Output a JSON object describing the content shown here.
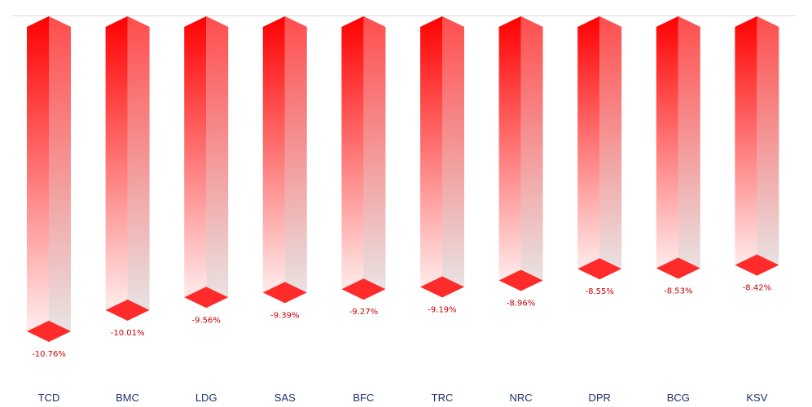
{
  "chart_data": {
    "type": "bar",
    "style": "3d-column-negative",
    "categories": [
      "TCD",
      "BMC",
      "LDG",
      "SAS",
      "BFC",
      "TRC",
      "NRC",
      "DPR",
      "BCG",
      "KSV"
    ],
    "values": [
      -10.76,
      -10.01,
      -9.56,
      -9.39,
      -9.27,
      -9.19,
      -8.96,
      -8.55,
      -8.53,
      -8.42
    ],
    "data_labels": [
      "-10.76%",
      "-10.01%",
      "-9.56%",
      "-9.39%",
      "-9.27%",
      "-9.19%",
      "-8.96%",
      "-8.55%",
      "-8.53%",
      "-8.42%"
    ],
    "title": "",
    "xlabel": "",
    "ylabel": "",
    "ylim": [
      -11.5,
      0
    ],
    "grid": false,
    "legend": "none",
    "colors": {
      "bar": "#ff0000",
      "bar_side": "#ff4d4d",
      "cap": "#ff2a2a",
      "shadow": "#e8e8e8",
      "data_label": "#cc0000",
      "category_label": "#1f2f6e",
      "baseline": "#d9d9d9"
    }
  }
}
